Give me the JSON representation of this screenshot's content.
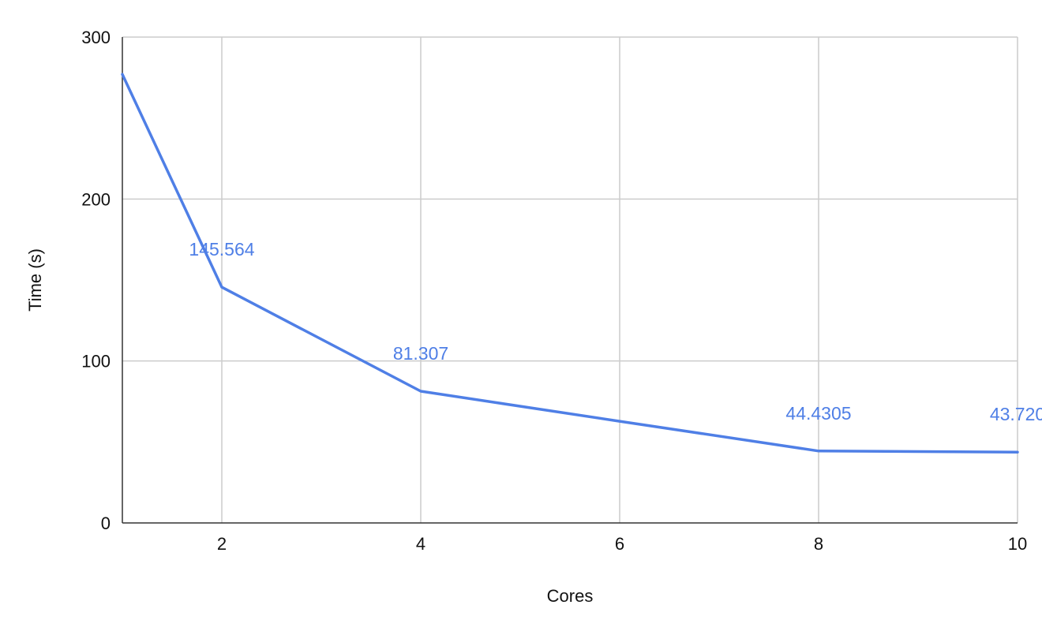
{
  "chart_data": {
    "type": "line",
    "title": "",
    "xlabel": "Cores",
    "ylabel": "Time (s)",
    "xlim": [
      1,
      10
    ],
    "ylim": [
      0,
      300
    ],
    "x_ticks": [
      2,
      4,
      6,
      8,
      10
    ],
    "y_ticks": [
      0,
      100,
      200,
      300
    ],
    "grid": true,
    "legend": "none",
    "series": [
      {
        "color": "#4f7fe6",
        "x": [
          1,
          2,
          4,
          6,
          8,
          10
        ],
        "values": [
          277,
          145.564,
          81.307,
          62.8,
          44.4305,
          43.72
        ],
        "data_labels": [
          "",
          "145.564",
          "81.307",
          "",
          "44.4305",
          "43.720"
        ]
      }
    ]
  }
}
